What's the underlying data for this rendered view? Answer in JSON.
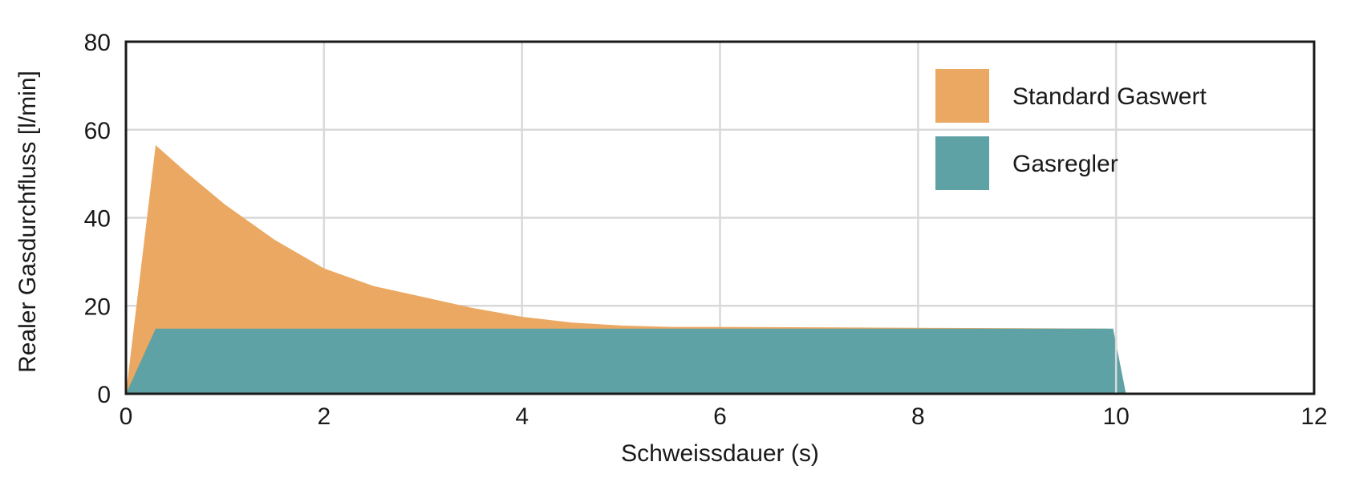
{
  "chart_data": {
    "type": "area",
    "xlabel": "Schweissdauer (s)",
    "ylabel": "Realer Gasdurchfluss [l/min]",
    "xlim": [
      0,
      12
    ],
    "ylim": [
      0,
      80
    ],
    "x_ticks": [
      0,
      2,
      4,
      6,
      8,
      10,
      12
    ],
    "y_ticks": [
      0,
      20,
      40,
      60,
      80
    ],
    "grid": true,
    "legend_position": "top-right",
    "series": [
      {
        "name": "Standard Gaswert",
        "color": "#EBA862",
        "x": [
          0,
          0.3,
          0.6,
          1.0,
          1.5,
          2.0,
          2.5,
          3.0,
          3.5,
          4.0,
          4.5,
          5.0,
          5.5,
          6.0,
          7.0,
          8.0,
          9.0,
          9.9,
          9.9
        ],
        "y": [
          0,
          56.5,
          50.5,
          43,
          35,
          28.5,
          24.5,
          22,
          19.5,
          17.5,
          16.2,
          15.5,
          15.2,
          15.2,
          15.1,
          15,
          14.9,
          14.8,
          0
        ]
      },
      {
        "name": "Gasregler",
        "color": "#5FA2A6",
        "x": [
          0,
          0.3,
          9.97,
          10.1
        ],
        "y": [
          0,
          14.8,
          14.8,
          0
        ]
      }
    ]
  }
}
